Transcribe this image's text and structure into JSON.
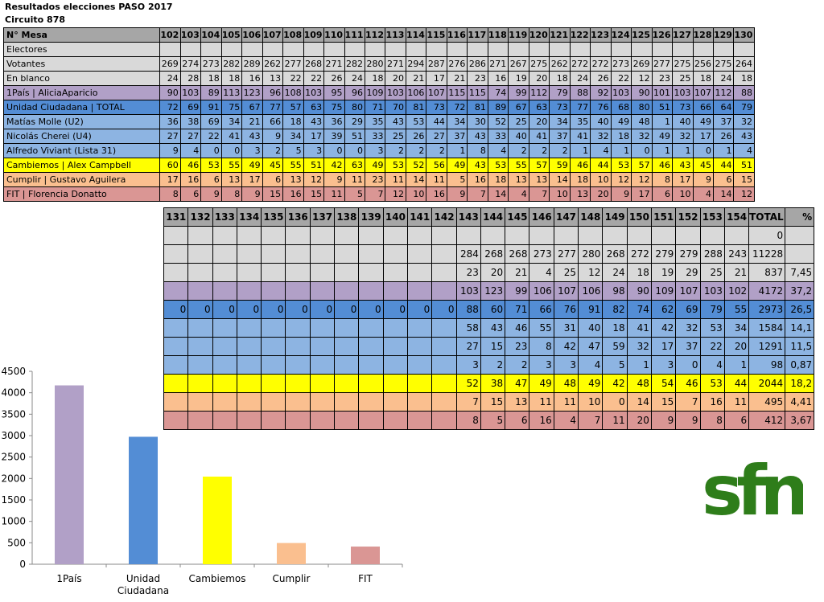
{
  "page": {
    "title": "Resultados  elecciones PASO 2017",
    "subtitle": "Circuito 878"
  },
  "colors": {
    "header": "#a6a6a6",
    "gray": "#d9d9d9",
    "purple": "#b1a0c7",
    "blue": "#538dd5",
    "light_blue": "#8db4e2",
    "yellow": "#ffff00",
    "orange": "#fabf8f",
    "red": "#da9694",
    "logo_green": "#2e7d1a"
  },
  "table1": {
    "header": [
      "N° Mesa",
      "102",
      "103",
      "104",
      "105",
      "106",
      "107",
      "108",
      "109",
      "110",
      "111",
      "112",
      "113",
      "114",
      "115",
      "116",
      "117",
      "118",
      "119",
      "120",
      "121",
      "122",
      "123",
      "124",
      "125",
      "126",
      "127",
      "128",
      "129",
      "130"
    ],
    "rows": [
      {
        "color": "gray",
        "cells": [
          "Electores",
          "",
          "",
          "",
          "",
          "",
          "",
          "",
          "",
          "",
          "",
          "",
          "",
          "",
          "",
          "",
          "",
          "",
          "",
          "",
          "",
          "",
          "",
          "",
          "",
          "",
          "",
          "",
          "",
          ""
        ]
      },
      {
        "color": "gray",
        "cells": [
          "Votantes",
          "269",
          "274",
          "273",
          "282",
          "289",
          "262",
          "277",
          "268",
          "271",
          "282",
          "280",
          "271",
          "294",
          "287",
          "276",
          "286",
          "271",
          "267",
          "275",
          "262",
          "272",
          "272",
          "273",
          "269",
          "277",
          "275",
          "256",
          "275",
          "264"
        ]
      },
      {
        "color": "gray",
        "cells": [
          "En blanco",
          "24",
          "28",
          "18",
          "18",
          "16",
          "13",
          "22",
          "22",
          "26",
          "24",
          "18",
          "20",
          "21",
          "17",
          "21",
          "23",
          "16",
          "19",
          "20",
          "18",
          "24",
          "26",
          "22",
          "12",
          "23",
          "25",
          "18",
          "24",
          "18"
        ]
      },
      {
        "color": "purple",
        "cells": [
          "1País | AliciaAparicio",
          "90",
          "103",
          "89",
          "113",
          "123",
          "96",
          "108",
          "103",
          "95",
          "96",
          "109",
          "103",
          "106",
          "107",
          "115",
          "115",
          "74",
          "99",
          "112",
          "79",
          "88",
          "92",
          "103",
          "90",
          "101",
          "103",
          "107",
          "112",
          "88"
        ]
      },
      {
        "color": "blue",
        "cells": [
          "Unidad Ciudadana | TOTAL",
          "72",
          "69",
          "91",
          "75",
          "67",
          "77",
          "57",
          "63",
          "75",
          "80",
          "71",
          "70",
          "81",
          "73",
          "72",
          "81",
          "89",
          "67",
          "63",
          "73",
          "77",
          "76",
          "68",
          "80",
          "51",
          "73",
          "66",
          "64",
          "79"
        ]
      },
      {
        "color": "light_blue",
        "cells": [
          "Matías Molle (U2)",
          "36",
          "38",
          "69",
          "34",
          "21",
          "66",
          "18",
          "43",
          "36",
          "29",
          "35",
          "43",
          "53",
          "44",
          "34",
          "30",
          "52",
          "25",
          "20",
          "34",
          "35",
          "40",
          "49",
          "48",
          "1",
          "40",
          "49",
          "37",
          "32"
        ]
      },
      {
        "color": "light_blue",
        "cells": [
          "Nicolás Cherei (U4)",
          "27",
          "27",
          "22",
          "41",
          "43",
          "9",
          "34",
          "17",
          "39",
          "51",
          "33",
          "25",
          "26",
          "27",
          "37",
          "43",
          "33",
          "40",
          "41",
          "37",
          "41",
          "32",
          "18",
          "32",
          "49",
          "32",
          "17",
          "26",
          "43"
        ]
      },
      {
        "color": "light_blue",
        "cells": [
          "Alfredo Viviant (Lista 31)",
          "9",
          "4",
          "0",
          "0",
          "3",
          "2",
          "5",
          "3",
          "0",
          "0",
          "3",
          "2",
          "2",
          "2",
          "1",
          "8",
          "4",
          "2",
          "2",
          "2",
          "1",
          "4",
          "1",
          "0",
          "1",
          "1",
          "0",
          "1",
          "4"
        ]
      },
      {
        "color": "yellow",
        "cells": [
          "Cambiemos | Alex Campbell",
          "60",
          "46",
          "53",
          "55",
          "49",
          "45",
          "55",
          "51",
          "42",
          "63",
          "49",
          "53",
          "52",
          "56",
          "49",
          "43",
          "53",
          "55",
          "57",
          "59",
          "46",
          "44",
          "53",
          "57",
          "46",
          "43",
          "45",
          "44",
          "51"
        ]
      },
      {
        "color": "orange",
        "cells": [
          "Cumplir | Gustavo Aguilera",
          "17",
          "16",
          "6",
          "13",
          "17",
          "6",
          "13",
          "12",
          "9",
          "11",
          "23",
          "11",
          "14",
          "11",
          "5",
          "16",
          "18",
          "13",
          "13",
          "14",
          "18",
          "10",
          "12",
          "12",
          "8",
          "17",
          "9",
          "6",
          "15"
        ]
      },
      {
        "color": "red",
        "cells": [
          "FIT | Florencia Donatto",
          "8",
          "6",
          "9",
          "8",
          "9",
          "15",
          "16",
          "15",
          "11",
          "5",
          "7",
          "12",
          "10",
          "16",
          "9",
          "7",
          "14",
          "4",
          "7",
          "10",
          "13",
          "20",
          "9",
          "17",
          "6",
          "10",
          "4",
          "14",
          "12"
        ]
      }
    ]
  },
  "table2": {
    "header": [
      "131",
      "132",
      "133",
      "134",
      "135",
      "136",
      "137",
      "138",
      "139",
      "140",
      "141",
      "142",
      "143",
      "144",
      "145",
      "146",
      "147",
      "148",
      "149",
      "150",
      "151",
      "152",
      "153",
      "154",
      "TOTAL",
      "%"
    ],
    "rows": [
      {
        "color": "gray",
        "cells": [
          "",
          "",
          "",
          "",
          "",
          "",
          "",
          "",
          "",
          "",
          "",
          "",
          "",
          "",
          "",
          "",
          "",
          "",
          "",
          "",
          "",
          "",
          "",
          "",
          "0",
          ""
        ]
      },
      {
        "color": "gray",
        "cells": [
          "",
          "",
          "",
          "",
          "",
          "",
          "",
          "",
          "",
          "",
          "",
          "",
          "284",
          "268",
          "268",
          "273",
          "277",
          "280",
          "268",
          "272",
          "279",
          "279",
          "288",
          "243",
          "11228",
          ""
        ]
      },
      {
        "color": "gray",
        "cells": [
          "",
          "",
          "",
          "",
          "",
          "",
          "",
          "",
          "",
          "",
          "",
          "",
          "23",
          "20",
          "21",
          "4",
          "25",
          "12",
          "24",
          "18",
          "19",
          "29",
          "25",
          "21",
          "837",
          "7,45"
        ]
      },
      {
        "color": "purple",
        "cells": [
          "",
          "",
          "",
          "",
          "",
          "",
          "",
          "",
          "",
          "",
          "",
          "",
          "103",
          "123",
          "99",
          "106",
          "107",
          "106",
          "98",
          "90",
          "109",
          "107",
          "103",
          "102",
          "4172",
          "37,2"
        ]
      },
      {
        "color": "blue",
        "cells": [
          "0",
          "0",
          "0",
          "0",
          "0",
          "0",
          "0",
          "0",
          "0",
          "0",
          "0",
          "0",
          "88",
          "60",
          "71",
          "66",
          "76",
          "91",
          "82",
          "74",
          "62",
          "69",
          "79",
          "55",
          "2973",
          "26,5"
        ]
      },
      {
        "color": "light_blue",
        "cells": [
          "",
          "",
          "",
          "",
          "",
          "",
          "",
          "",
          "",
          "",
          "",
          "",
          "58",
          "43",
          "46",
          "55",
          "31",
          "40",
          "18",
          "41",
          "42",
          "32",
          "53",
          "34",
          "1584",
          "14,1"
        ]
      },
      {
        "color": "light_blue",
        "cells": [
          "",
          "",
          "",
          "",
          "",
          "",
          "",
          "",
          "",
          "",
          "",
          "",
          "27",
          "15",
          "23",
          "8",
          "42",
          "47",
          "59",
          "32",
          "17",
          "37",
          "22",
          "20",
          "1291",
          "11,5"
        ]
      },
      {
        "color": "light_blue",
        "cells": [
          "",
          "",
          "",
          "",
          "",
          "",
          "",
          "",
          "",
          "",
          "",
          "",
          "3",
          "2",
          "2",
          "3",
          "3",
          "4",
          "5",
          "1",
          "3",
          "0",
          "4",
          "1",
          "98",
          "0,87"
        ]
      },
      {
        "color": "yellow",
        "cells": [
          "",
          "",
          "",
          "",
          "",
          "",
          "",
          "",
          "",
          "",
          "",
          "",
          "52",
          "38",
          "47",
          "49",
          "48",
          "49",
          "42",
          "48",
          "54",
          "46",
          "53",
          "44",
          "2044",
          "18,2"
        ]
      },
      {
        "color": "orange",
        "cells": [
          "",
          "",
          "",
          "",
          "",
          "",
          "",
          "",
          "",
          "",
          "",
          "",
          "7",
          "15",
          "13",
          "11",
          "11",
          "10",
          "0",
          "14",
          "15",
          "7",
          "16",
          "11",
          "495",
          "4,41"
        ]
      },
      {
        "color": "red",
        "cells": [
          "",
          "",
          "",
          "",
          "",
          "",
          "",
          "",
          "",
          "",
          "",
          "",
          "8",
          "5",
          "6",
          "16",
          "4",
          "7",
          "11",
          "20",
          "9",
          "9",
          "8",
          "6",
          "412",
          "3,67"
        ]
      }
    ]
  },
  "chart_data": {
    "type": "bar",
    "categories": [
      "1País",
      "Unidad Ciudadana",
      "Cambiemos",
      "Cumplir",
      "FIT"
    ],
    "category_lines": [
      [
        "1País"
      ],
      [
        "Unidad",
        "Ciudadana"
      ],
      [
        "Cambiemos"
      ],
      [
        "Cumplir"
      ],
      [
        "FIT"
      ]
    ],
    "values": [
      4172,
      2973,
      2044,
      495,
      412
    ],
    "colors": [
      "#b1a0c7",
      "#538dd5",
      "#ffff00",
      "#fabf8f",
      "#da9694"
    ],
    "ylim": [
      0,
      4500
    ],
    "yticks": [
      "0",
      "500",
      "1000",
      "1500",
      "2000",
      "2500",
      "3000",
      "3500",
      "4000",
      "4500"
    ],
    "grid": false,
    "title": "",
    "xlabel": "",
    "ylabel": ""
  },
  "logo": {
    "text": "sfn",
    "icon": "sfn-logo-icon"
  }
}
